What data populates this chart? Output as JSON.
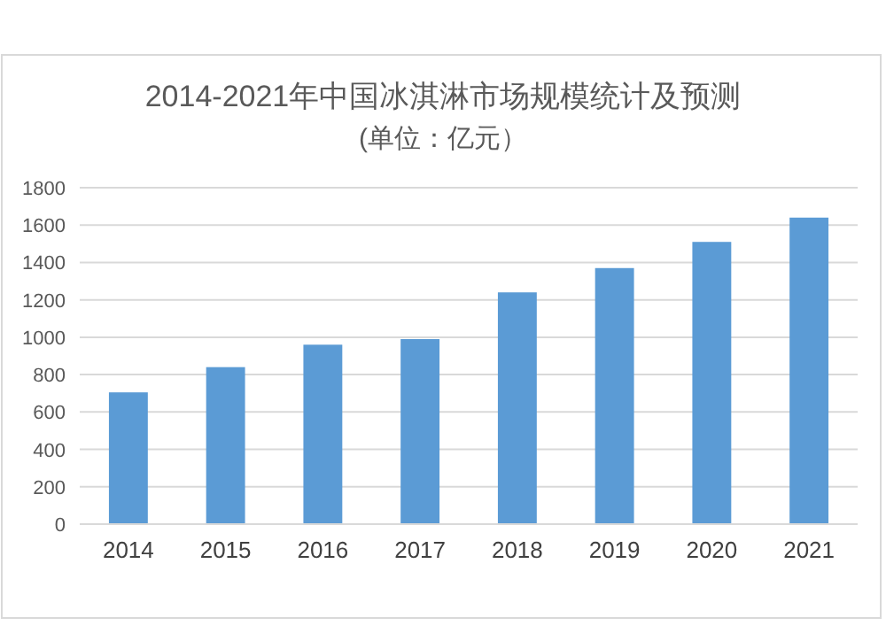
{
  "chart_data": {
    "type": "bar",
    "title": "2014-2021年中国冰淇淋市场规模统计及预测",
    "subtitle": "(单位：亿元）",
    "categories": [
      "2014",
      "2015",
      "2016",
      "2017",
      "2018",
      "2019",
      "2020",
      "2021"
    ],
    "values": [
      705,
      840,
      960,
      990,
      1240,
      1370,
      1510,
      1640
    ],
    "color": "#5b9bd5",
    "ylim": [
      0,
      1800
    ],
    "yticks": [
      0,
      200,
      400,
      600,
      800,
      1000,
      1200,
      1400,
      1600,
      1800
    ],
    "grid": "y"
  }
}
